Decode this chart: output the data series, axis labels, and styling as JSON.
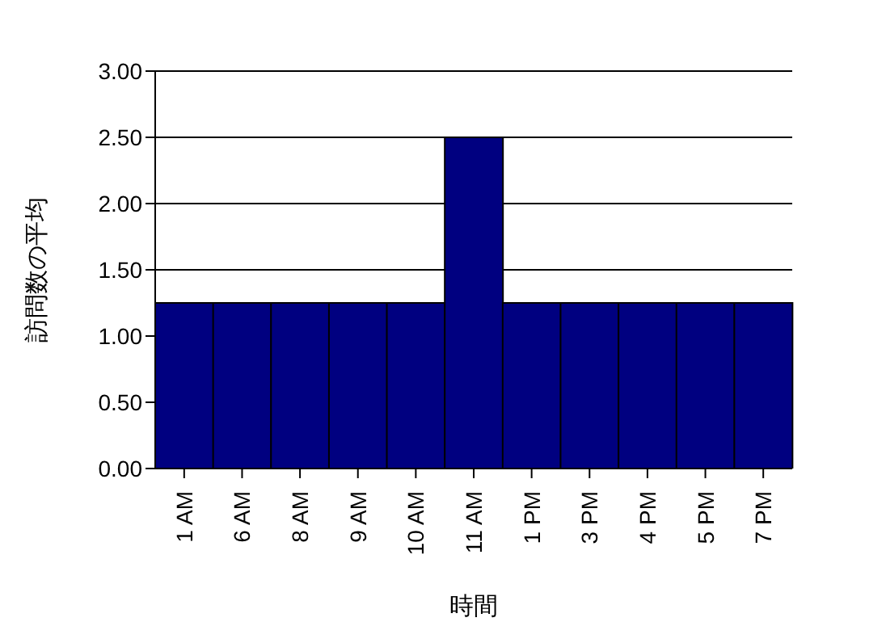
{
  "chart_data": {
    "type": "bar",
    "xlabel": "時間",
    "ylabel": "訪問数の平均",
    "categories": [
      "1 AM",
      "6 AM",
      "8 AM",
      "9 AM",
      "10 AM",
      "11 AM",
      "1 PM",
      "3 PM",
      "4 PM",
      "5 PM",
      "7 PM"
    ],
    "values": [
      1.25,
      1.25,
      1.25,
      1.25,
      1.25,
      2.5,
      1.25,
      1.25,
      1.25,
      1.25,
      1.25
    ],
    "color": "#000080",
    "ylim": [
      0,
      3
    ],
    "yticks": [
      {
        "value": 0,
        "label": "0.00"
      },
      {
        "value": 0.5,
        "label": "0.50"
      },
      {
        "value": 1,
        "label": "1.00"
      },
      {
        "value": 1.5,
        "label": "1.50"
      },
      {
        "value": 2,
        "label": "2.00"
      },
      {
        "value": 2.5,
        "label": "2.50"
      },
      {
        "value": 3,
        "label": "3.00"
      }
    ],
    "grid": "y"
  }
}
